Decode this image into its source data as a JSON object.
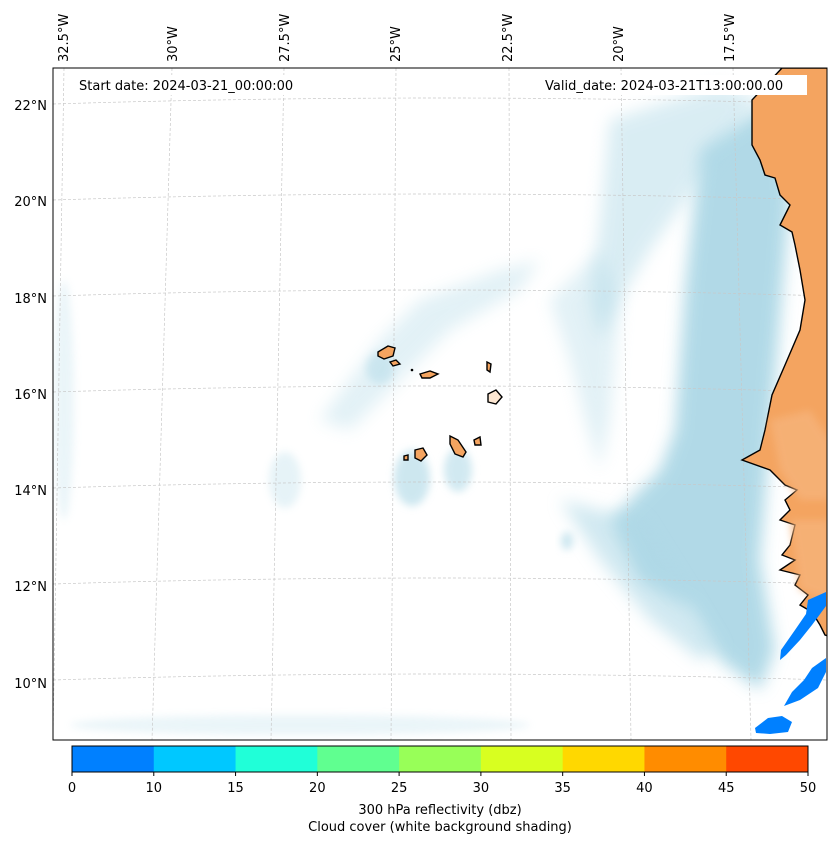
{
  "header": {
    "start_date": "Start date: 2024-03-21_00:00:00",
    "valid_date": "Valid_date: 2024-03-21T13:00:00.00"
  },
  "axes": {
    "lon_labels": [
      "32.5°W",
      "30°W",
      "27.5°W",
      "25°W",
      "22.5°W",
      "20°W",
      "17.5°W"
    ],
    "lat_labels": [
      "22°N",
      "20°N",
      "18°N",
      "16°N",
      "14°N",
      "12°N",
      "10°N"
    ]
  },
  "colorbar": {
    "bins": [
      {
        "from": 0,
        "to": 10,
        "color": "#0080ff"
      },
      {
        "from": 10,
        "to": 15,
        "color": "#00c8ff"
      },
      {
        "from": 15,
        "to": 20,
        "color": "#20ffd8"
      },
      {
        "from": 20,
        "to": 25,
        "color": "#60ff90"
      },
      {
        "from": 25,
        "to": 30,
        "color": "#98ff58"
      },
      {
        "from": 30,
        "to": 35,
        "color": "#d8ff20"
      },
      {
        "from": 35,
        "to": 40,
        "color": "#ffd800"
      },
      {
        "from": 40,
        "to": 45,
        "color": "#ff8c00"
      },
      {
        "from": 45,
        "to": 50,
        "color": "#ff4800"
      }
    ],
    "ticks": [
      "0",
      "10",
      "15",
      "20",
      "25",
      "30",
      "35",
      "40",
      "45",
      "50"
    ],
    "label_line1": "300 hPa reflectivity (dbz)",
    "label_line2": "Cloud cover (white background shading)"
  },
  "colors": {
    "land": "#f4a460",
    "cloud": "#add8e6",
    "reflectivity_low": "#0080ff"
  }
}
